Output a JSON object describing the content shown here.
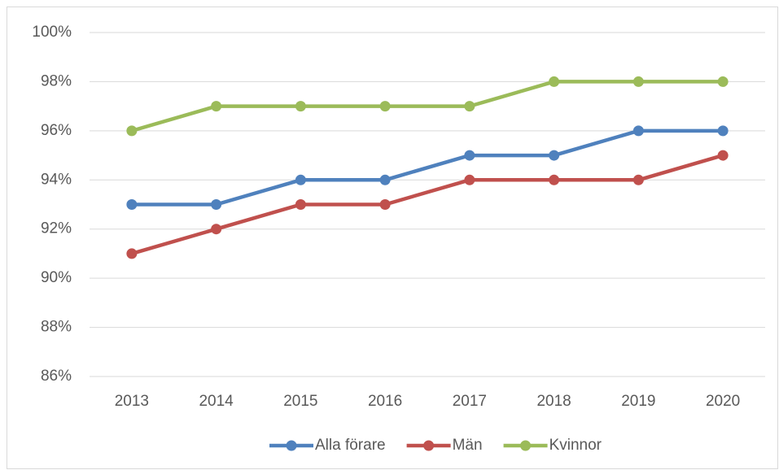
{
  "chart_data": {
    "type": "line",
    "categories": [
      "2013",
      "2014",
      "2015",
      "2016",
      "2017",
      "2018",
      "2019",
      "2020"
    ],
    "series": [
      {
        "name": "Alla förare",
        "color": "#4f81bd",
        "values": [
          93,
          93,
          94,
          94,
          95,
          95,
          96,
          96
        ]
      },
      {
        "name": "Män",
        "color": "#c0504d",
        "values": [
          91,
          92,
          93,
          93,
          94,
          94,
          94,
          95
        ]
      },
      {
        "name": "Kvinnor",
        "color": "#9bbb59",
        "values": [
          96,
          97,
          97,
          97,
          97,
          98,
          98,
          98
        ]
      }
    ],
    "ylim": [
      86,
      100
    ],
    "yticks": [
      {
        "value": 86,
        "label": "86%"
      },
      {
        "value": 88,
        "label": "88%"
      },
      {
        "value": 90,
        "label": "90%"
      },
      {
        "value": 92,
        "label": "92%"
      },
      {
        "value": 94,
        "label": "94%"
      },
      {
        "value": 96,
        "label": "96%"
      },
      {
        "value": 98,
        "label": "98%"
      },
      {
        "value": 100,
        "label": "100%"
      }
    ],
    "grid": true,
    "legend": "bottom"
  }
}
